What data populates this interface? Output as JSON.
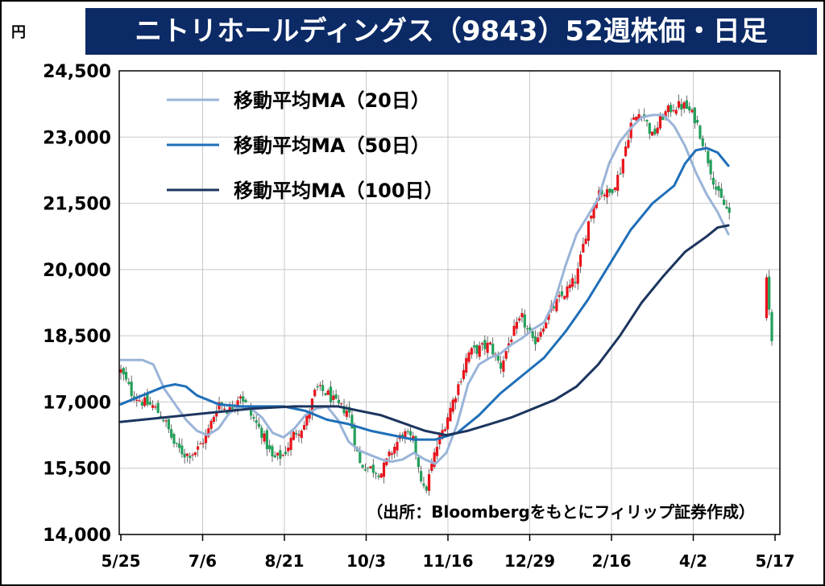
{
  "header": {
    "title": "ニトリホールディングス（9843）52週株価・日足",
    "unit": "円"
  },
  "chart_data": {
    "type": "candlestick",
    "ylim": [
      14000,
      24500
    ],
    "y_ticks": [
      14000,
      15500,
      17000,
      18500,
      20000,
      21500,
      23000,
      24500
    ],
    "y_tick_labels": [
      "14,000",
      "15,500",
      "17,000",
      "18,500",
      "20,000",
      "21,500",
      "23,000",
      "24,500"
    ],
    "x_tick_labels": [
      "5/25",
      "7/6",
      "8/21",
      "10/3",
      "11/16",
      "12/29",
      "2/16",
      "4/2",
      "5/17"
    ],
    "grid": true,
    "legend_position": "top-left",
    "source_note": "（出所：Bloombergをもとにフィリップ証券作成）",
    "up_color": "#e8141b",
    "down_color": "#23a05a",
    "weekly_closes": [
      [
        0,
        17700
      ],
      [
        1,
        17200
      ],
      [
        2,
        17000
      ],
      [
        3,
        16900
      ],
      [
        4,
        16600
      ],
      [
        5,
        16000
      ],
      [
        6,
        15800
      ],
      [
        7,
        15900
      ],
      [
        8,
        16300
      ],
      [
        9,
        17000
      ],
      [
        10,
        16800
      ],
      [
        11,
        17200
      ],
      [
        12,
        16700
      ],
      [
        13,
        16300
      ],
      [
        14,
        15700
      ],
      [
        15,
        15800
      ],
      [
        16,
        16300
      ],
      [
        17,
        16500
      ],
      [
        18,
        17300
      ],
      [
        19,
        17200
      ],
      [
        20,
        16900
      ],
      [
        21,
        16800
      ],
      [
        22,
        15600
      ],
      [
        23,
        15500
      ],
      [
        24,
        15400
      ],
      [
        25,
        15900
      ],
      [
        26,
        16300
      ],
      [
        27,
        16100
      ],
      [
        28,
        14900
      ],
      [
        29,
        15900
      ],
      [
        30,
        16600
      ],
      [
        31,
        17300
      ],
      [
        32,
        18100
      ],
      [
        33,
        18200
      ],
      [
        34,
        18300
      ],
      [
        35,
        17800
      ],
      [
        36,
        18500
      ],
      [
        37,
        18900
      ],
      [
        38,
        18300
      ],
      [
        39,
        18800
      ],
      [
        40,
        19200
      ],
      [
        41,
        19500
      ],
      [
        42,
        19800
      ],
      [
        43,
        21000
      ],
      [
        44,
        21800
      ],
      [
        45,
        21700
      ],
      [
        46,
        22200
      ],
      [
        47,
        23300
      ],
      [
        48,
        23600
      ],
      [
        49,
        23000
      ],
      [
        50,
        23500
      ],
      [
        51,
        23700
      ],
      [
        52,
        23700
      ],
      [
        53,
        23400
      ],
      [
        54,
        22600
      ],
      [
        55,
        21700
      ],
      [
        56,
        21300
      ],
      [
        57,
        20900
      ],
      [
        58,
        20700
      ],
      [
        59,
        21100
      ],
      [
        60,
        18400
      ]
    ],
    "series": [
      {
        "name": "移動平均MA（20日）",
        "color": "#9ab4d8",
        "values": [
          [
            0,
            17950
          ],
          [
            2,
            17950
          ],
          [
            3,
            17850
          ],
          [
            4,
            17300
          ],
          [
            5,
            16950
          ],
          [
            6,
            16600
          ],
          [
            7,
            16350
          ],
          [
            8,
            16250
          ],
          [
            9,
            16400
          ],
          [
            10,
            16750
          ],
          [
            11,
            16900
          ],
          [
            12,
            16850
          ],
          [
            13,
            16650
          ],
          [
            14,
            16300
          ],
          [
            15,
            16200
          ],
          [
            16,
            16400
          ],
          [
            17,
            16700
          ],
          [
            18,
            16850
          ],
          [
            19,
            16900
          ],
          [
            20,
            16600
          ],
          [
            21,
            16100
          ],
          [
            22,
            15900
          ],
          [
            23,
            15800
          ],
          [
            24,
            15700
          ],
          [
            25,
            15650
          ],
          [
            26,
            15700
          ],
          [
            27,
            15850
          ],
          [
            28,
            15700
          ],
          [
            29,
            15600
          ],
          [
            30,
            15850
          ],
          [
            31,
            16500
          ],
          [
            32,
            17400
          ],
          [
            33,
            17850
          ],
          [
            34,
            18000
          ],
          [
            35,
            18100
          ],
          [
            36,
            18300
          ],
          [
            37,
            18450
          ],
          [
            38,
            18650
          ],
          [
            39,
            18800
          ],
          [
            40,
            19300
          ],
          [
            41,
            20100
          ],
          [
            42,
            20800
          ],
          [
            43,
            21200
          ],
          [
            44,
            21600
          ],
          [
            45,
            22400
          ],
          [
            46,
            22900
          ],
          [
            47,
            23200
          ],
          [
            48,
            23450
          ],
          [
            49,
            23500
          ],
          [
            50,
            23500
          ],
          [
            51,
            23250
          ],
          [
            52,
            22800
          ],
          [
            53,
            22200
          ],
          [
            54,
            21700
          ],
          [
            55,
            21300
          ],
          [
            56,
            20800
          ]
        ]
      },
      {
        "name": "移動平均MA（50日）",
        "color": "#1f6fb8",
        "values": [
          [
            0,
            16950
          ],
          [
            2,
            17150
          ],
          [
            4,
            17350
          ],
          [
            5,
            17400
          ],
          [
            6,
            17350
          ],
          [
            7,
            17150
          ],
          [
            9,
            16950
          ],
          [
            11,
            16900
          ],
          [
            13,
            16900
          ],
          [
            15,
            16900
          ],
          [
            17,
            16800
          ],
          [
            19,
            16600
          ],
          [
            21,
            16500
          ],
          [
            23,
            16350
          ],
          [
            25,
            16250
          ],
          [
            27,
            16150
          ],
          [
            29,
            16150
          ],
          [
            31,
            16300
          ],
          [
            33,
            16700
          ],
          [
            35,
            17200
          ],
          [
            37,
            17600
          ],
          [
            39,
            18000
          ],
          [
            41,
            18600
          ],
          [
            43,
            19300
          ],
          [
            45,
            20100
          ],
          [
            47,
            20900
          ],
          [
            49,
            21500
          ],
          [
            51,
            21900
          ],
          [
            52,
            22400
          ],
          [
            53,
            22700
          ],
          [
            54,
            22750
          ],
          [
            55,
            22650
          ],
          [
            56,
            22350
          ]
        ]
      },
      {
        "name": "移動平均MA（100日）",
        "color": "#1c355e",
        "values": [
          [
            0,
            16550
          ],
          [
            4,
            16650
          ],
          [
            8,
            16750
          ],
          [
            12,
            16850
          ],
          [
            16,
            16900
          ],
          [
            20,
            16900
          ],
          [
            24,
            16700
          ],
          [
            28,
            16350
          ],
          [
            30,
            16250
          ],
          [
            32,
            16350
          ],
          [
            34,
            16500
          ],
          [
            36,
            16650
          ],
          [
            38,
            16850
          ],
          [
            40,
            17050
          ],
          [
            42,
            17350
          ],
          [
            44,
            17850
          ],
          [
            46,
            18500
          ],
          [
            48,
            19250
          ],
          [
            50,
            19850
          ],
          [
            52,
            20400
          ],
          [
            54,
            20750
          ],
          [
            55,
            20950
          ],
          [
            56,
            21000
          ]
        ]
      }
    ]
  }
}
